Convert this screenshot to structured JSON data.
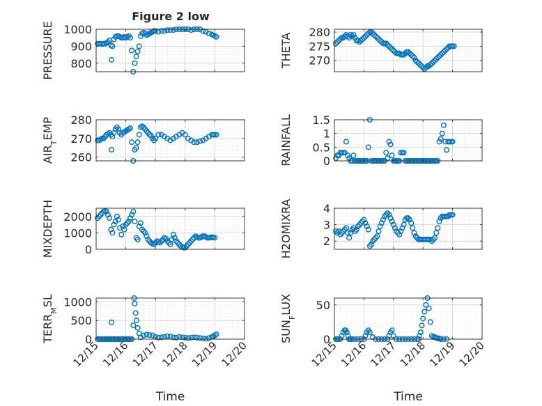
{
  "figure": {
    "title": "Figure 2 low"
  },
  "chart_data": [
    {
      "type": "scatter",
      "ylabel": "PRESSURE",
      "ylim": [
        750,
        1000
      ],
      "yticks": [
        800,
        900,
        1000
      ],
      "xlim": [
        0,
        5
      ],
      "xticks": [
        0,
        1,
        2,
        3,
        4,
        5
      ],
      "xticklabels": [
        "12/15",
        "12/16",
        "12/17",
        "12/18",
        "12/19",
        "12/20"
      ],
      "xlabel": "",
      "grid": true,
      "color": "#0072BD",
      "x": [
        0.05,
        0.1,
        0.15,
        0.2,
        0.25,
        0.3,
        0.35,
        0.4,
        0.45,
        0.5,
        0.52,
        0.55,
        0.6,
        0.65,
        0.7,
        0.75,
        0.8,
        0.85,
        0.9,
        0.95,
        1.0,
        1.05,
        1.1,
        1.15,
        1.2,
        1.25,
        1.3,
        1.35,
        1.4,
        1.45,
        1.5,
        1.55,
        1.6,
        1.65,
        1.7,
        1.75,
        1.8,
        1.85,
        1.9,
        1.95,
        2.0,
        2.1,
        2.2,
        2.3,
        2.4,
        2.5,
        2.6,
        2.7,
        2.8,
        2.9,
        3.0,
        3.1,
        3.2,
        3.3,
        3.4,
        3.5,
        3.6,
        3.7,
        3.8,
        3.9,
        3.95,
        4.0,
        4.05
      ],
      "y": [
        915,
        915,
        915,
        912,
        915,
        915,
        920,
        925,
        935,
        905,
        820,
        900,
        940,
        955,
        960,
        960,
        955,
        950,
        950,
        955,
        950,
        955,
        960,
        950,
        875,
        750,
        800,
        840,
        870,
        900,
        960,
        975,
        980,
        975,
        965,
        970,
        975,
        980,
        985,
        990,
        990,
        985,
        990,
        990,
        995,
        995,
        995,
        1000,
        1000,
        1000,
        1000,
        1000,
        995,
        1000,
        1000,
        1000,
        990,
        985,
        975,
        970,
        965,
        960,
        955
      ]
    },
    {
      "type": "scatter",
      "ylabel": "THETA",
      "ylim": [
        266,
        281
      ],
      "yticks": [
        270,
        275,
        280
      ],
      "xlim": [
        0,
        5
      ],
      "xticks": [
        0,
        1,
        2,
        3,
        4,
        5
      ],
      "xticklabels": [
        "12/15",
        "12/16",
        "12/17",
        "12/18",
        "12/19",
        "12/20"
      ],
      "xlabel": "",
      "grid": true,
      "color": "#0072BD",
      "x": [
        0.05,
        0.1,
        0.15,
        0.2,
        0.25,
        0.3,
        0.35,
        0.4,
        0.45,
        0.5,
        0.55,
        0.6,
        0.65,
        0.7,
        0.75,
        0.8,
        0.85,
        0.9,
        0.95,
        1.0,
        1.05,
        1.1,
        1.15,
        1.2,
        1.25,
        1.3,
        1.35,
        1.4,
        1.45,
        1.5,
        1.55,
        1.6,
        1.65,
        1.7,
        1.75,
        1.8,
        1.85,
        1.9,
        1.95,
        2.0,
        2.05,
        2.1,
        2.15,
        2.2,
        2.25,
        2.3,
        2.35,
        2.4,
        2.45,
        2.5,
        2.55,
        2.6,
        2.65,
        2.7,
        2.75,
        2.8,
        2.85,
        2.9,
        2.95,
        3.0,
        3.05,
        3.1,
        3.15,
        3.2,
        3.25,
        3.3,
        3.35,
        3.4,
        3.45,
        3.5,
        3.55,
        3.6,
        3.65,
        3.7,
        3.75,
        3.8,
        3.85,
        3.9,
        3.95,
        4.0,
        4.05
      ],
      "y": [
        276,
        276.5,
        277,
        277.5,
        278,
        278,
        278.5,
        279,
        278.5,
        278,
        279,
        278.5,
        279,
        278,
        277,
        277,
        276.5,
        277,
        277.5,
        278,
        278.5,
        279,
        279.5,
        280,
        280,
        279.5,
        279,
        278.5,
        278,
        277.5,
        277,
        276.5,
        276,
        276,
        276,
        275.5,
        275,
        274.5,
        274,
        273.5,
        273,
        272.5,
        272.5,
        272.5,
        272,
        272,
        272,
        272.5,
        273,
        273,
        272.5,
        272,
        271.5,
        271,
        270,
        269.5,
        269,
        268.5,
        268,
        267.5,
        267,
        267.5,
        268,
        268,
        268.5,
        269,
        269.5,
        270,
        270.5,
        271,
        271.5,
        272,
        272.5,
        273,
        273.5,
        274,
        274.5,
        275,
        275,
        275,
        275
      ]
    },
    {
      "type": "scatter",
      "ylabel": "AIR_TEMP",
      "ylim": [
        258,
        280
      ],
      "yticks": [
        260,
        270,
        280
      ],
      "xlim": [
        0,
        5
      ],
      "xticks": [
        0,
        1,
        2,
        3,
        4,
        5
      ],
      "xticklabels": [
        "12/15",
        "12/16",
        "12/17",
        "12/18",
        "12/19",
        "12/20"
      ],
      "xlabel": "",
      "grid": true,
      "color": "#0072BD",
      "x": [
        0.05,
        0.1,
        0.15,
        0.2,
        0.25,
        0.3,
        0.35,
        0.4,
        0.45,
        0.5,
        0.52,
        0.55,
        0.6,
        0.65,
        0.7,
        0.75,
        0.8,
        0.85,
        0.9,
        0.95,
        1.0,
        1.05,
        1.1,
        1.15,
        1.2,
        1.25,
        1.3,
        1.35,
        1.4,
        1.45,
        1.5,
        1.55,
        1.6,
        1.65,
        1.7,
        1.75,
        1.8,
        1.85,
        1.9,
        1.95,
        2.0,
        2.1,
        2.2,
        2.3,
        2.4,
        2.5,
        2.6,
        2.7,
        2.8,
        2.9,
        3.0,
        3.1,
        3.2,
        3.3,
        3.4,
        3.5,
        3.6,
        3.7,
        3.8,
        3.9,
        3.95,
        4.0,
        4.05
      ],
      "y": [
        269,
        269,
        269.5,
        270,
        270,
        271,
        272,
        272.5,
        273,
        272,
        264,
        271,
        273,
        275,
        276,
        275,
        273,
        272,
        273,
        273.5,
        274,
        274.5,
        275,
        275.5,
        268,
        258,
        264,
        265,
        268,
        272,
        276,
        276.5,
        276,
        275,
        274,
        273,
        272,
        271.5,
        270,
        269,
        270,
        272,
        272,
        271,
        270,
        269,
        270,
        271,
        272,
        273,
        272,
        270,
        269,
        268,
        268,
        268.5,
        269,
        270,
        271,
        272,
        272,
        272,
        272
      ]
    },
    {
      "type": "scatter",
      "ylabel": "RAINFALL",
      "ylim": [
        0,
        1.5
      ],
      "yticks": [
        0,
        0.5,
        1,
        1.5
      ],
      "xlim": [
        0,
        5
      ],
      "xticks": [
        0,
        1,
        2,
        3,
        4,
        5
      ],
      "xticklabels": [
        "12/15",
        "12/16",
        "12/17",
        "12/18",
        "12/19",
        "12/20"
      ],
      "xlabel": "",
      "grid": true,
      "color": "#0072BD",
      "x": [
        0.05,
        0.1,
        0.15,
        0.2,
        0.25,
        0.3,
        0.35,
        0.4,
        0.45,
        0.5,
        0.55,
        0.6,
        0.65,
        0.7,
        0.75,
        0.8,
        0.85,
        0.9,
        0.95,
        1.0,
        1.05,
        1.1,
        1.15,
        1.2,
        1.25,
        1.3,
        1.35,
        1.4,
        1.45,
        1.5,
        1.55,
        1.6,
        1.65,
        1.7,
        1.75,
        1.8,
        1.85,
        1.9,
        1.95,
        2.0,
        2.05,
        2.1,
        2.15,
        2.2,
        2.25,
        2.3,
        2.35,
        2.4,
        2.45,
        2.5,
        2.55,
        2.6,
        2.65,
        2.7,
        2.75,
        2.8,
        2.85,
        2.9,
        2.95,
        3.0,
        3.05,
        3.1,
        3.15,
        3.2,
        3.25,
        3.3,
        3.35,
        3.4,
        3.45,
        3.5,
        3.55,
        3.6,
        3.65,
        3.7,
        3.75,
        3.8,
        3.85,
        3.9,
        3.95,
        4.0
      ],
      "y": [
        0.1,
        0.2,
        0.2,
        0.3,
        0.3,
        0.3,
        0.3,
        0.7,
        0.2,
        0.1,
        0,
        0,
        0.2,
        0,
        0,
        0,
        0,
        0,
        0,
        0,
        0,
        0,
        0.5,
        1.5,
        0,
        0,
        0,
        0,
        0,
        0,
        0,
        0,
        0,
        0,
        0.3,
        0.1,
        0.7,
        0.6,
        0.2,
        0,
        0,
        0,
        0,
        0,
        0.3,
        0.3,
        0.3,
        0,
        0,
        0,
        0,
        0,
        0,
        0,
        0,
        0,
        0,
        0,
        0,
        0,
        0,
        0,
        0,
        0,
        0,
        0,
        0,
        0,
        0,
        0,
        0.7,
        0.8,
        1.0,
        1.3,
        0.7,
        0.4,
        0.7,
        0.7,
        0.7,
        0.7
      ]
    },
    {
      "type": "scatter",
      "ylabel": "MIXDEPTH",
      "ylim": [
        0,
        2500
      ],
      "yticks": [
        0,
        1000,
        2000
      ],
      "xlim": [
        0,
        5
      ],
      "xticks": [
        0,
        1,
        2,
        3,
        4,
        5
      ],
      "xticklabels": [
        "12/15",
        "12/16",
        "12/17",
        "12/18",
        "12/19",
        "12/20"
      ],
      "xlabel": "",
      "grid": true,
      "color": "#0072BD",
      "x": [
        0.05,
        0.1,
        0.15,
        0.2,
        0.25,
        0.3,
        0.35,
        0.4,
        0.45,
        0.5,
        0.55,
        0.6,
        0.65,
        0.7,
        0.75,
        0.8,
        0.85,
        0.9,
        0.95,
        1.0,
        1.05,
        1.1,
        1.15,
        1.2,
        1.25,
        1.3,
        1.35,
        1.4,
        1.45,
        1.5,
        1.55,
        1.6,
        1.65,
        1.7,
        1.75,
        1.8,
        1.85,
        1.9,
        1.95,
        2.0,
        2.05,
        2.1,
        2.15,
        2.2,
        2.25,
        2.3,
        2.35,
        2.4,
        2.45,
        2.5,
        2.55,
        2.6,
        2.65,
        2.7,
        2.75,
        2.8,
        2.85,
        2.9,
        2.95,
        3.0,
        3.05,
        3.1,
        3.15,
        3.2,
        3.25,
        3.3,
        3.35,
        3.4,
        3.45,
        3.5,
        3.55,
        3.6,
        3.65,
        3.7,
        3.75,
        3.8,
        3.85,
        3.9,
        3.95,
        4.0
      ],
      "y": [
        1900,
        2000,
        2100,
        2200,
        2300,
        2350,
        2300,
        2100,
        1900,
        1200,
        1000,
        1500,
        1700,
        2000,
        1800,
        1300,
        900,
        1400,
        1200,
        1500,
        1600,
        1700,
        1900,
        2100,
        2300,
        1700,
        700,
        600,
        1400,
        1600,
        1200,
        1100,
        1000,
        800,
        600,
        500,
        400,
        350,
        300,
        400,
        500,
        450,
        400,
        500,
        600,
        700,
        650,
        500,
        400,
        300,
        600,
        900,
        700,
        500,
        400,
        300,
        200,
        150,
        100,
        100,
        200,
        300,
        400,
        500,
        600,
        700,
        800,
        750,
        700,
        700,
        750,
        800,
        800,
        750,
        700,
        700,
        720,
        740,
        720,
        700
      ]
    },
    {
      "type": "scatter",
      "ylabel": "H2OMIXRA",
      "ylim": [
        1.5,
        4
      ],
      "yticks": [
        2,
        3,
        4
      ],
      "xlim": [
        0,
        5
      ],
      "xticks": [
        0,
        1,
        2,
        3,
        4,
        5
      ],
      "xticklabels": [
        "12/15",
        "12/16",
        "12/17",
        "12/18",
        "12/19",
        "12/20"
      ],
      "xlabel": "",
      "grid": true,
      "color": "#0072BD",
      "x": [
        0.05,
        0.1,
        0.15,
        0.2,
        0.25,
        0.3,
        0.35,
        0.4,
        0.45,
        0.5,
        0.55,
        0.6,
        0.65,
        0.7,
        0.75,
        0.8,
        0.85,
        0.9,
        0.95,
        1.0,
        1.05,
        1.1,
        1.15,
        1.2,
        1.25,
        1.3,
        1.35,
        1.4,
        1.45,
        1.5,
        1.55,
        1.6,
        1.65,
        1.7,
        1.75,
        1.8,
        1.85,
        1.9,
        1.95,
        2.0,
        2.05,
        2.1,
        2.15,
        2.2,
        2.25,
        2.3,
        2.35,
        2.4,
        2.45,
        2.5,
        2.55,
        2.6,
        2.65,
        2.7,
        2.75,
        2.8,
        2.85,
        2.9,
        2.95,
        3.0,
        3.05,
        3.1,
        3.15,
        3.2,
        3.25,
        3.3,
        3.35,
        3.4,
        3.45,
        3.5,
        3.55,
        3.6,
        3.65,
        3.7,
        3.75,
        3.8,
        3.85,
        3.9,
        3.95,
        4.0
      ],
      "y": [
        2.6,
        2.5,
        2.6,
        2.4,
        2.5,
        2.6,
        2.7,
        2.8,
        2.5,
        2.2,
        2.5,
        2.7,
        2.8,
        2.6,
        2.7,
        2.9,
        3.0,
        3.1,
        3.2,
        3.3,
        3.1,
        2.9,
        2.7,
        1.7,
        1.8,
        2.0,
        2.1,
        2.2,
        2.3,
        2.6,
        2.9,
        3.1,
        3.3,
        3.5,
        3.6,
        3.7,
        3.6,
        3.4,
        3.2,
        3.0,
        2.8,
        2.6,
        2.5,
        2.4,
        2.6,
        2.8,
        3.0,
        3.3,
        3.4,
        3.4,
        3.3,
        3.1,
        2.8,
        2.5,
        2.3,
        2.2,
        2.1,
        2.1,
        2.1,
        2.1,
        2.1,
        2.1,
        2.1,
        2.1,
        2.1,
        2.0,
        2.1,
        2.2,
        2.5,
        2.8,
        3.2,
        3.4,
        3.5,
        3.5,
        3.5,
        3.5,
        3.5,
        3.6,
        3.6,
        3.6
      ]
    },
    {
      "type": "scatter",
      "ylabel": "TERR_MSL",
      "ylim": [
        0,
        1100
      ],
      "yticks": [
        0,
        500,
        1000
      ],
      "xlim": [
        0,
        5
      ],
      "xticks": [
        0,
        1,
        2,
        3,
        4,
        5
      ],
      "xticklabels": [
        "12/15",
        "12/16",
        "12/17",
        "12/18",
        "12/19",
        "12/20"
      ],
      "xlabel": "Time",
      "grid": true,
      "color": "#0072BD",
      "x": [
        0.05,
        0.1,
        0.15,
        0.2,
        0.25,
        0.3,
        0.35,
        0.4,
        0.45,
        0.5,
        0.52,
        0.55,
        0.6,
        0.65,
        0.7,
        0.75,
        0.8,
        0.85,
        0.9,
        0.95,
        1.0,
        1.05,
        1.1,
        1.15,
        1.2,
        1.25,
        1.28,
        1.3,
        1.33,
        1.36,
        1.4,
        1.45,
        1.5,
        1.6,
        1.7,
        1.8,
        1.9,
        2.0,
        2.1,
        2.2,
        2.3,
        2.4,
        2.5,
        2.6,
        2.7,
        2.8,
        2.9,
        3.0,
        3.1,
        3.2,
        3.3,
        3.4,
        3.5,
        3.6,
        3.7,
        3.8,
        3.9,
        3.95,
        4.0,
        4.05
      ],
      "y": [
        0,
        0,
        0,
        0,
        0,
        0,
        0,
        0,
        0,
        0,
        450,
        0,
        0,
        0,
        0,
        0,
        0,
        0,
        0,
        0,
        0,
        0,
        0,
        0,
        0,
        370,
        1100,
        950,
        700,
        500,
        300,
        150,
        50,
        100,
        120,
        110,
        100,
        60,
        40,
        50,
        60,
        80,
        70,
        50,
        40,
        60,
        50,
        40,
        30,
        40,
        50,
        40,
        30,
        20,
        10,
        30,
        60,
        80,
        100,
        130
      ]
    },
    {
      "type": "scatter",
      "ylabel": "SUN_FLUX",
      "ylim": [
        0,
        60
      ],
      "yticks": [
        0,
        50
      ],
      "xlim": [
        0,
        5
      ],
      "xticks": [
        0,
        1,
        2,
        3,
        4,
        5
      ],
      "xticklabels": [
        "12/15",
        "12/16",
        "12/17",
        "12/18",
        "12/19",
        "12/20"
      ],
      "xlabel": "Time",
      "grid": true,
      "color": "#0072BD",
      "x": [
        0.05,
        0.1,
        0.15,
        0.2,
        0.25,
        0.3,
        0.35,
        0.38,
        0.42,
        0.46,
        0.5,
        0.55,
        0.6,
        0.7,
        0.8,
        0.9,
        1.0,
        1.05,
        1.1,
        1.15,
        1.2,
        1.3,
        1.4,
        1.5,
        1.6,
        1.7,
        1.8,
        1.85,
        1.9,
        1.95,
        2.0,
        2.1,
        2.2,
        2.3,
        2.4,
        2.5,
        2.6,
        2.7,
        2.8,
        2.85,
        2.88,
        2.92,
        2.96,
        3.0,
        3.05,
        3.1,
        3.15,
        3.2,
        3.25,
        3.3,
        3.35,
        3.4,
        3.45,
        3.5,
        3.55,
        3.6,
        3.7,
        3.8
      ],
      "y": [
        0,
        0,
        0,
        0,
        5,
        10,
        13,
        13,
        10,
        5,
        0,
        0,
        0,
        0,
        0,
        0,
        0,
        5,
        10,
        13,
        10,
        3,
        0,
        0,
        0,
        0,
        0,
        5,
        10,
        13,
        5,
        0,
        0,
        0,
        0,
        0,
        0,
        0,
        0,
        0,
        5,
        10,
        20,
        30,
        40,
        50,
        60,
        45,
        25,
        5,
        3,
        3,
        2,
        1,
        1,
        0,
        0,
        0
      ]
    }
  ]
}
